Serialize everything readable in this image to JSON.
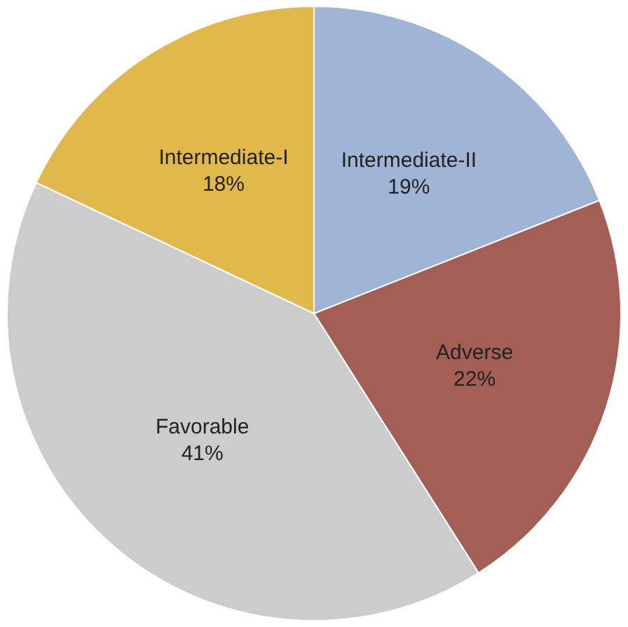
{
  "chart_data": {
    "type": "pie",
    "categories": [
      "Intermediate-II",
      "Adverse",
      "Favorable",
      "Intermediate-I"
    ],
    "values": [
      19,
      22,
      41,
      18
    ],
    "colors": [
      "#a0b5d6",
      "#a35e56",
      "#cccccc",
      "#e0b84c"
    ],
    "value_labels": [
      "19%",
      "22%",
      "41%",
      "18%"
    ],
    "legend": false
  }
}
